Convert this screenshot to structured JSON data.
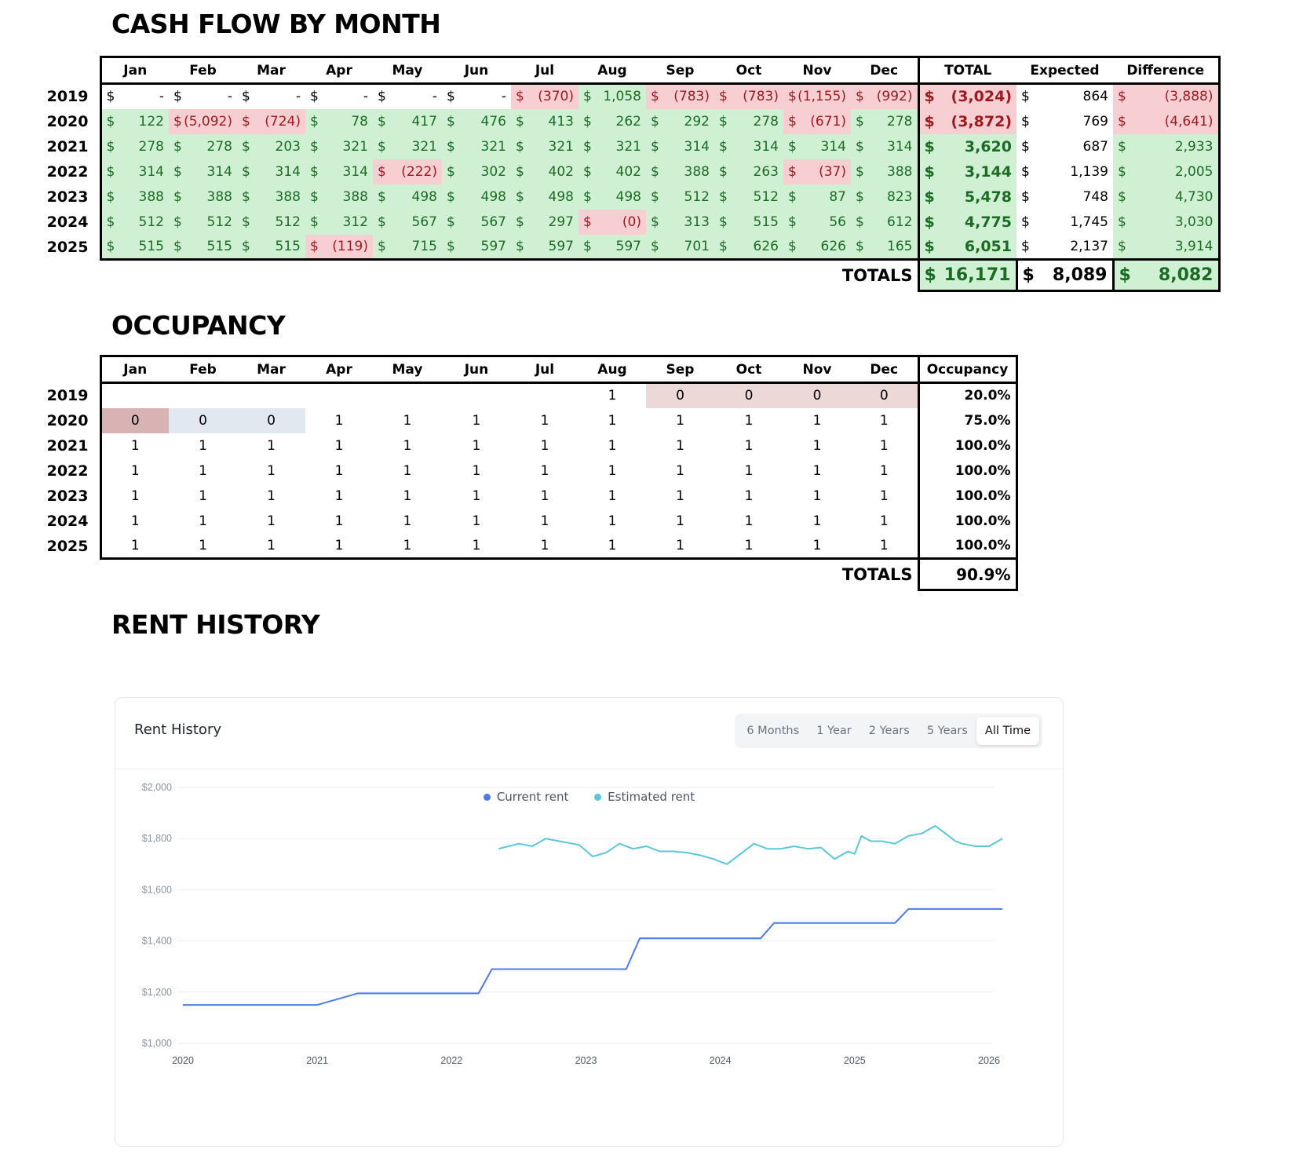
{
  "cashflow": {
    "title": "CASH FLOW BY MONTH",
    "months": [
      "Jan",
      "Feb",
      "Mar",
      "Apr",
      "May",
      "Jun",
      "Jul",
      "Aug",
      "Sep",
      "Oct",
      "Nov",
      "Dec"
    ],
    "col_total": "TOTAL",
    "col_expected": "Expected",
    "col_difference": "Difference",
    "rows": [
      {
        "year": "2019",
        "cells": [
          "-",
          "-",
          "-",
          "-",
          "-",
          "-",
          "(370)",
          "1,058",
          "(783)",
          "(783)",
          "(1,155)",
          "(992)"
        ],
        "total": "(3,024)",
        "expected": "864",
        "difference": "(3,888)"
      },
      {
        "year": "2020",
        "cells": [
          "122",
          "(5,092)",
          "(724)",
          "78",
          "417",
          "476",
          "413",
          "262",
          "292",
          "278",
          "(671)",
          "278"
        ],
        "total": "(3,872)",
        "expected": "769",
        "difference": "(4,641)"
      },
      {
        "year": "2021",
        "cells": [
          "278",
          "278",
          "203",
          "321",
          "321",
          "321",
          "321",
          "321",
          "314",
          "314",
          "314",
          "314"
        ],
        "total": "3,620",
        "expected": "687",
        "difference": "2,933"
      },
      {
        "year": "2022",
        "cells": [
          "314",
          "314",
          "314",
          "314",
          "(222)",
          "302",
          "402",
          "402",
          "388",
          "263",
          "(37)",
          "388"
        ],
        "total": "3,144",
        "expected": "1,139",
        "difference": "2,005"
      },
      {
        "year": "2023",
        "cells": [
          "388",
          "388",
          "388",
          "388",
          "498",
          "498",
          "498",
          "498",
          "512",
          "512",
          "87",
          "823"
        ],
        "total": "5,478",
        "expected": "748",
        "difference": "4,730"
      },
      {
        "year": "2024",
        "cells": [
          "512",
          "512",
          "512",
          "312",
          "567",
          "567",
          "297",
          "(0)",
          "313",
          "515",
          "56",
          "612"
        ],
        "total": "4,775",
        "expected": "1,745",
        "difference": "3,030"
      },
      {
        "year": "2025",
        "cells": [
          "515",
          "515",
          "515",
          "(119)",
          "715",
          "597",
          "597",
          "597",
          "701",
          "626",
          "626",
          "165"
        ],
        "total": "6,051",
        "expected": "2,137",
        "difference": "3,914"
      }
    ],
    "totals_label": "TOTALS",
    "totals": {
      "total": "16,171",
      "expected": "8,089",
      "difference": "8,082"
    },
    "currency": "$"
  },
  "occupancy": {
    "title": "OCCUPANCY",
    "months": [
      "Jan",
      "Feb",
      "Mar",
      "Apr",
      "May",
      "Jun",
      "Jul",
      "Aug",
      "Sep",
      "Oct",
      "Nov",
      "Dec"
    ],
    "col_occupancy": "Occupancy",
    "rows": [
      {
        "year": "2019",
        "cells": [
          "",
          "",
          "",
          "",
          "",
          "",
          "",
          "1",
          "0",
          "0",
          "0",
          "0"
        ],
        "occupancy": "20.0%"
      },
      {
        "year": "2020",
        "cells": [
          "0",
          "0",
          "0",
          "1",
          "1",
          "1",
          "1",
          "1",
          "1",
          "1",
          "1",
          "1"
        ],
        "occupancy": "75.0%"
      },
      {
        "year": "2021",
        "cells": [
          "1",
          "1",
          "1",
          "1",
          "1",
          "1",
          "1",
          "1",
          "1",
          "1",
          "1",
          "1"
        ],
        "occupancy": "100.0%"
      },
      {
        "year": "2022",
        "cells": [
          "1",
          "1",
          "1",
          "1",
          "1",
          "1",
          "1",
          "1",
          "1",
          "1",
          "1",
          "1"
        ],
        "occupancy": "100.0%"
      },
      {
        "year": "2023",
        "cells": [
          "1",
          "1",
          "1",
          "1",
          "1",
          "1",
          "1",
          "1",
          "1",
          "1",
          "1",
          "1"
        ],
        "occupancy": "100.0%"
      },
      {
        "year": "2024",
        "cells": [
          "1",
          "1",
          "1",
          "1",
          "1",
          "1",
          "1",
          "1",
          "1",
          "1",
          "1",
          "1"
        ],
        "occupancy": "100.0%"
      },
      {
        "year": "2025",
        "cells": [
          "1",
          "1",
          "1",
          "1",
          "1",
          "1",
          "1",
          "1",
          "1",
          "1",
          "1",
          "1"
        ],
        "occupancy": "100.0%"
      }
    ],
    "totals_label": "TOTALS",
    "total": "90.9%"
  },
  "rent_history": {
    "title": "RENT HISTORY",
    "card_title": "Rent History",
    "ranges": [
      "6 Months",
      "1 Year",
      "2 Years",
      "5 Years",
      "All Time"
    ],
    "active_range": "All Time"
  },
  "colors": {
    "current": "#4f7be8",
    "estimated": "#5bc6d8",
    "pos_bg": "#d0f0d4",
    "neg_bg": "#f7cfd2"
  },
  "chart_data": {
    "type": "line",
    "title": "Rent History",
    "xlabel": "",
    "ylabel": "",
    "ylim": [
      1000,
      2000
    ],
    "xlim": [
      2020.0,
      2026.0
    ],
    "y_ticks": [
      "$1,000",
      "$1,200",
      "$1,400",
      "$1,600",
      "$1,800",
      "$2,000"
    ],
    "y_tick_values": [
      1000,
      1200,
      1400,
      1600,
      1800,
      2000
    ],
    "x_ticks": [
      "2020",
      "2021",
      "2022",
      "2023",
      "2024",
      "2025",
      "2026"
    ],
    "x_tick_values": [
      2020,
      2021,
      2022,
      2023,
      2024,
      2025,
      2026
    ],
    "legend": [
      "Current rent",
      "Estimated rent"
    ],
    "grid": true,
    "series": [
      {
        "name": "Current rent",
        "x": [
          2020.0,
          2020.9,
          2021.0,
          2021.3,
          2022.2,
          2022.3,
          2023.3,
          2023.4,
          2024.3,
          2024.4,
          2025.3,
          2025.4,
          2026.1
        ],
        "y": [
          1150,
          1150,
          1150,
          1195,
          1195,
          1290,
          1290,
          1410,
          1410,
          1470,
          1470,
          1525,
          1525
        ]
      },
      {
        "name": "Estimated rent",
        "x": [
          2022.35,
          2022.5,
          2022.6,
          2022.7,
          2022.8,
          2022.95,
          2023.05,
          2023.15,
          2023.25,
          2023.35,
          2023.45,
          2023.55,
          2023.65,
          2023.75,
          2023.85,
          2023.95,
          2024.05,
          2024.15,
          2024.25,
          2024.35,
          2024.45,
          2024.55,
          2024.65,
          2024.75,
          2024.85,
          2024.95,
          2025.0,
          2025.05,
          2025.12,
          2025.2,
          2025.3,
          2025.4,
          2025.5,
          2025.6,
          2025.7,
          2025.75,
          2025.8,
          2025.9,
          2026.0,
          2026.1
        ],
        "y": [
          1760,
          1780,
          1770,
          1800,
          1790,
          1775,
          1730,
          1745,
          1780,
          1760,
          1770,
          1750,
          1750,
          1745,
          1735,
          1720,
          1700,
          1740,
          1780,
          1760,
          1760,
          1770,
          1760,
          1765,
          1720,
          1750,
          1740,
          1810,
          1790,
          1790,
          1780,
          1810,
          1820,
          1850,
          1810,
          1790,
          1780,
          1770,
          1770,
          1800
        ]
      }
    ]
  }
}
